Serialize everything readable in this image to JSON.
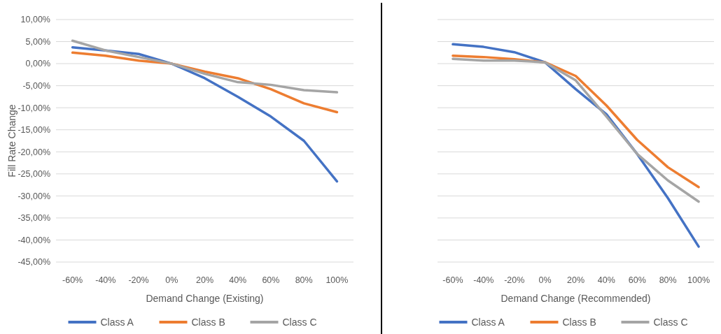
{
  "chart_data": [
    {
      "type": "line",
      "xlabel": "Demand Change (Existing)",
      "ylabel": "Fill Rate Change",
      "categories": [
        "-60%",
        "-40%",
        "-20%",
        "0%",
        "20%",
        "40%",
        "60%",
        "80%",
        "100%"
      ],
      "series": [
        {
          "name": "Class A",
          "color": "#4472c4",
          "values": [
            3.7,
            3.0,
            2.2,
            0,
            -3.3,
            -7.5,
            -12,
            -17.5,
            -26.7
          ]
        },
        {
          "name": "Class B",
          "color": "#ed7d31",
          "values": [
            2.5,
            1.8,
            0.7,
            0,
            -1.8,
            -3.3,
            -5.8,
            -9,
            -11
          ]
        },
        {
          "name": "Class C",
          "color": "#a5a5a5",
          "values": [
            5.2,
            3.0,
            1.5,
            0,
            -2.3,
            -4.2,
            -4.8,
            -6,
            -6.5
          ]
        }
      ],
      "ylim": [
        -45,
        10
      ],
      "yticks": [
        {
          "value": 10,
          "label": "10,00%"
        },
        {
          "value": 5,
          "label": "5,00%"
        },
        {
          "value": 0,
          "label": "0,00%"
        },
        {
          "value": -5,
          "label": "-5,00%"
        },
        {
          "value": -10,
          "label": "-10,00%"
        },
        {
          "value": -15,
          "label": "-15,00%"
        },
        {
          "value": -20,
          "label": "-20,00%"
        },
        {
          "value": -25,
          "label": "-25,00%"
        },
        {
          "value": -30,
          "label": "-30,00%"
        },
        {
          "value": -35,
          "label": "-35,00%"
        },
        {
          "value": -40,
          "label": "-40,00%"
        },
        {
          "value": -45,
          "label": "-45,00%"
        }
      ],
      "grid": "y",
      "legend": "bottom",
      "marker": "none"
    },
    {
      "type": "line",
      "xlabel": "Demand Change (Recommended)",
      "categories": [
        "-60%",
        "-40%",
        "-20%",
        "0%",
        "20%",
        "40%",
        "60%",
        "80%",
        "100%"
      ],
      "series": [
        {
          "name": "Class A",
          "color": "#4472c4",
          "values": [
            4.4,
            3.8,
            2.6,
            0.3,
            -5.8,
            -11.5,
            -20.5,
            -30.5,
            -41.5
          ]
        },
        {
          "name": "Class B",
          "color": "#ed7d31",
          "values": [
            1.8,
            1.5,
            1.0,
            0.3,
            -2.8,
            -9.5,
            -17.3,
            -23.5,
            -28
          ]
        },
        {
          "name": "Class C",
          "color": "#a5a5a5",
          "values": [
            1.1,
            0.7,
            0.7,
            0.3,
            -3.8,
            -12,
            -20.5,
            -26.5,
            -31.3
          ]
        }
      ],
      "ylim": [
        -45,
        10
      ],
      "yticks": [
        {
          "value": 10,
          "label": null
        },
        {
          "value": 5,
          "label": null
        },
        {
          "value": 0,
          "label": null
        },
        {
          "value": -5,
          "label": null
        },
        {
          "value": -10,
          "label": null
        },
        {
          "value": -15,
          "label": null
        },
        {
          "value": -20,
          "label": null
        },
        {
          "value": -25,
          "label": null
        },
        {
          "value": -30,
          "label": null
        },
        {
          "value": -35,
          "label": null
        },
        {
          "value": -40,
          "label": null
        },
        {
          "value": -45,
          "label": null
        }
      ],
      "grid": "y",
      "legend": "bottom",
      "marker": "none",
      "tick_labels": "x"
    }
  ]
}
